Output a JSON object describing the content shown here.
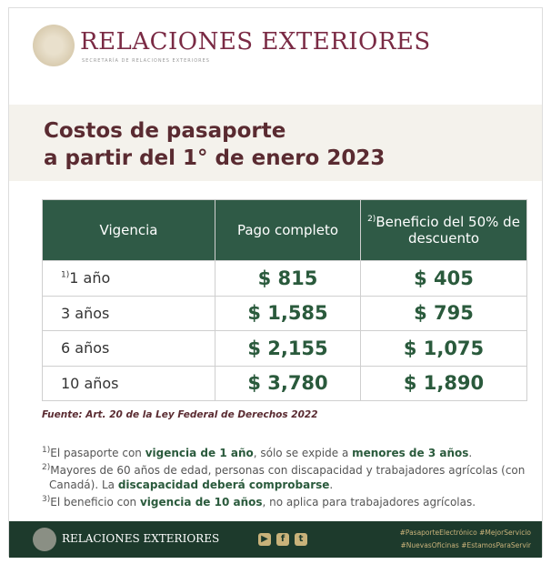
{
  "header": {
    "brand": "RELACIONES EXTERIORES",
    "subtitle": "SECRETARÍA DE RELACIONES EXTERIORES"
  },
  "title": {
    "line1": "Costos de pasaporte",
    "line2": "a partir del 1° de enero 2023"
  },
  "table": {
    "columns": [
      "Vigencia",
      "Pago completo",
      "Beneficio del 50% de descuento"
    ],
    "column3_note": "2)",
    "rows": [
      {
        "note": "1)",
        "vigencia": "1 año",
        "completo": "$ 815",
        "descuento": "$ 405"
      },
      {
        "note": "",
        "vigencia": "3 años",
        "completo": "$ 1,585",
        "descuento": "$ 795"
      },
      {
        "note": "",
        "vigencia": "6 años",
        "completo": "$ 2,155",
        "descuento": "$ 1,075"
      },
      {
        "note": "",
        "vigencia": "10 años",
        "completo": "$ 3,780",
        "descuento": "$ 1,890"
      }
    ]
  },
  "source": "Fuente: Art. 20 de la Ley Federal de Derechos 2022",
  "notes": [
    {
      "mark": "1)",
      "a": "El pasaporte con ",
      "b1": "vigencia de 1 año",
      "c": ", sólo se expide a ",
      "b2": "menores de 3 años",
      "d": "."
    },
    {
      "mark": "2)",
      "a": "Mayores de 60 años de edad, personas con discapacidad y trabajadores agrícolas (con Canadá). La ",
      "b1": "discapacidad deberá comprobarse",
      "c": "."
    },
    {
      "mark": "3)",
      "a": "El beneficio con ",
      "b1": "vigencia de 10 años",
      "c": ", no aplica para trabajadores agrícolas."
    }
  ],
  "footer": {
    "brand": "RELACIONES EXTERIORES",
    "social": [
      "youtube-icon",
      "facebook-icon",
      "twitter-icon"
    ],
    "tags_line1": "#PasaporteElectrónico #MejorServicio",
    "tags_line2": "#NuevasOficinas #EstamosParaServir"
  },
  "colors": {
    "brand": "#7a2a44",
    "green": "#2f5a46",
    "footer": "#1d3a2c"
  }
}
